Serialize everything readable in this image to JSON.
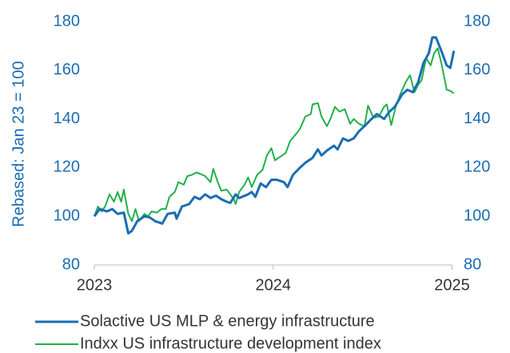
{
  "chart_data": {
    "type": "line",
    "y_label": "Rebased: Jan 23 = 100",
    "x": [],
    "xlim": [
      2023,
      2025.02
    ],
    "xticks": [
      2023,
      2024,
      2025
    ],
    "ylim": [
      80,
      180
    ],
    "yticks": [
      80,
      100,
      120,
      140,
      160,
      180
    ],
    "y2lim": [
      80,
      180
    ],
    "y2ticks": [
      80,
      100,
      120,
      140,
      160,
      180
    ],
    "grid": false,
    "legend": "bottom",
    "series": [
      {
        "name": "Solactive US MLP & energy infrastructure",
        "color": "#1b6db3",
        "x": [
          2023,
          2023.03,
          2023.07,
          2023.1,
          2023.13,
          2023.165,
          2023.19,
          2023.21,
          2023.24,
          2023.28,
          2023.31,
          2023.34,
          2023.38,
          2023.41,
          2023.45,
          2023.46,
          2023.49,
          2023.53,
          2023.56,
          2023.59,
          2023.62,
          2023.65,
          2023.68,
          2023.71,
          2023.74,
          2023.76,
          2023.79,
          2023.81,
          2023.86,
          2023.88,
          2023.9,
          2023.93,
          2023.96,
          2023.99,
          2024.02,
          2024.06,
          2024.08,
          2024.11,
          2024.15,
          2024.18,
          2024.22,
          2024.25,
          2024.27,
          2024.3,
          2024.34,
          2024.36,
          2024.39,
          2024.42,
          2024.45,
          2024.48,
          2024.51,
          2024.55,
          2024.58,
          2024.62,
          2024.65,
          2024.68,
          2024.72,
          2024.75,
          2024.78,
          2024.81,
          2024.84,
          2024.87,
          2024.89,
          2024.91,
          2024.94,
          2024.97,
          2024.99,
          2025.01
        ],
        "values": [
          100,
          103,
          102,
          103,
          101,
          101.5,
          93,
          94,
          98,
          100,
          99.5,
          98,
          97,
          101,
          101.5,
          99,
          104,
          105,
          108,
          107,
          109,
          107.5,
          108.5,
          107,
          106,
          105.5,
          109,
          107.5,
          109,
          110,
          108,
          113.5,
          112,
          115,
          115,
          114,
          112,
          117,
          120,
          122,
          124,
          127.5,
          125,
          127,
          129,
          127.5,
          132,
          131,
          132,
          135,
          137,
          140,
          142,
          140,
          143,
          145,
          150,
          152,
          151,
          155,
          163,
          167,
          173.5,
          173.5,
          168,
          162,
          161,
          168
        ]
      },
      {
        "name": "Indxx US infrastructure development index",
        "color": "#22b04b",
        "x": [
          2023,
          2023.02,
          2023.04,
          2023.06,
          2023.085,
          2023.11,
          2023.13,
          2023.15,
          2023.165,
          2023.19,
          2023.21,
          2023.23,
          2023.25,
          2023.28,
          2023.3,
          2023.32,
          2023.35,
          2023.375,
          2023.4,
          2023.42,
          2023.45,
          2023.47,
          2023.5,
          2023.52,
          2023.545,
          2023.57,
          2023.59,
          2023.62,
          2023.65,
          2023.665,
          2023.69,
          2023.71,
          2023.74,
          2023.76,
          2023.78,
          2023.79,
          2023.81,
          2023.84,
          2023.86,
          2023.88,
          2023.91,
          2023.94,
          2023.965,
          2023.99,
          2024.01,
          2024.04,
          2024.07,
          2024.095,
          2024.13,
          2024.15,
          2024.18,
          2024.21,
          2024.22,
          2024.25,
          2024.27,
          2024.3,
          2024.32,
          2024.345,
          2024.37,
          2024.4,
          2024.43,
          2024.45,
          2024.48,
          2024.51,
          2024.53,
          2024.56,
          2024.59,
          2024.62,
          2024.635,
          2024.66,
          2024.685,
          2024.71,
          2024.74,
          2024.765,
          2024.79,
          2024.81,
          2024.83,
          2024.855,
          2024.88,
          2024.9,
          2024.92,
          2024.94,
          2024.97,
          2024.99,
          2025.01
        ],
        "values": [
          100,
          104,
          102,
          104,
          109,
          106,
          110,
          106,
          111,
          101,
          98,
          103,
          98,
          101,
          100,
          102,
          101.5,
          103,
          103,
          108,
          110,
          114,
          113,
          116.5,
          117,
          118,
          117.5,
          116.5,
          114,
          119.5,
          114,
          110.5,
          111,
          109,
          107,
          105,
          110,
          113,
          116,
          112,
          117,
          119,
          125,
          128,
          123,
          124.5,
          126,
          131,
          134,
          136,
          141,
          142,
          146,
          146.5,
          141,
          137,
          140,
          145,
          143,
          144,
          138,
          140,
          138,
          137,
          145.5,
          140.5,
          141,
          145,
          146,
          137.5,
          145,
          150,
          155,
          158,
          151,
          154,
          156,
          165,
          162,
          167,
          169,
          163,
          152,
          151.5,
          150.5
        ]
      }
    ]
  }
}
